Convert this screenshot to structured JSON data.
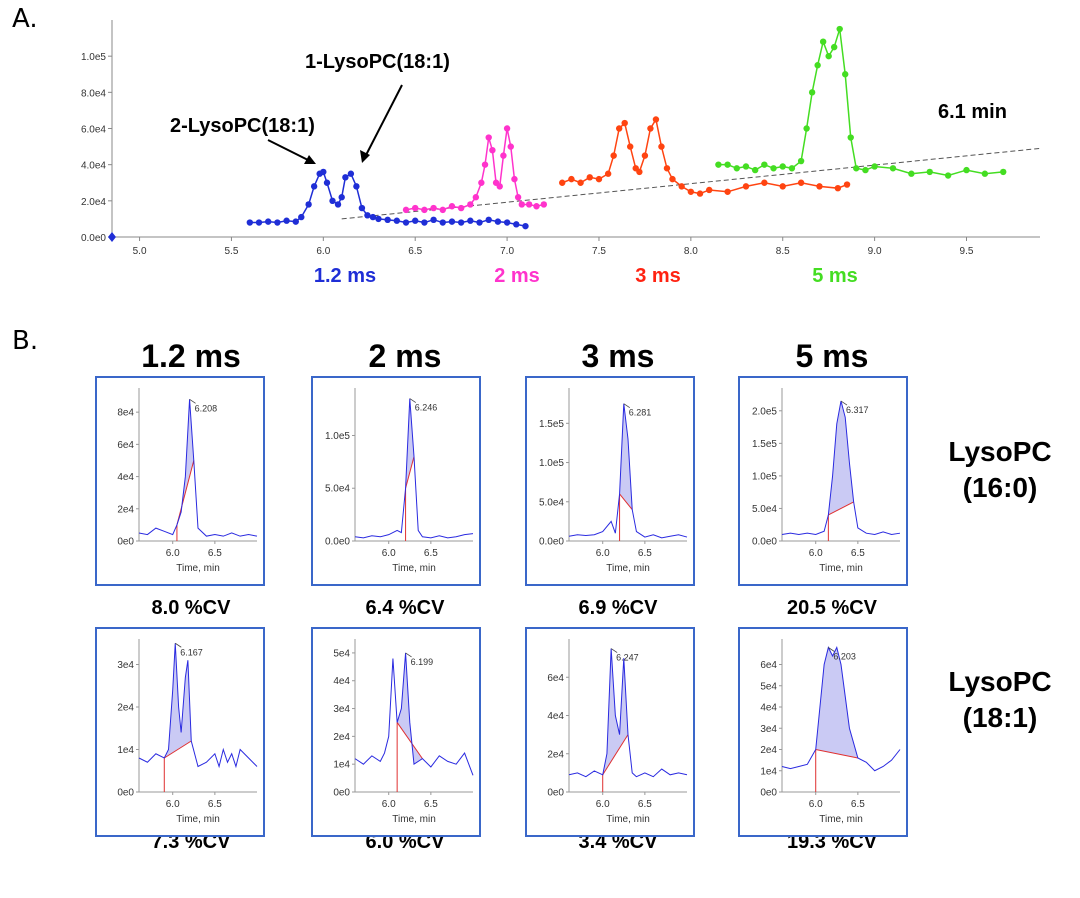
{
  "panelA": {
    "letter": "A.",
    "annotations": {
      "peak1": "1-LysoPC(18:1)",
      "peak2": "2-LysoPC(18:1)",
      "time": "6.1 min"
    },
    "series_labels": [
      "1.2 ms",
      "2 ms",
      "3 ms",
      "5 ms"
    ],
    "colors": {
      "s1": "#1f2ed6",
      "s2": "#ff33cc",
      "s3": "#ff4411",
      "s4": "#44dd22"
    }
  },
  "panelB": {
    "letter": "B.",
    "column_titles": [
      "1.2 ms",
      "2 ms",
      "3 ms",
      "5 ms"
    ],
    "row_labels": [
      {
        "line1": "LysoPC",
        "line2": "(16:0)"
      },
      {
        "line1": "LysoPC",
        "line2": "(18:1)"
      }
    ],
    "cv_row1": [
      "8.0 %CV",
      "6.4 %CV",
      "6.9 %CV",
      "20.5 %CV"
    ],
    "cv_row2": [
      "7.3 %CV",
      "6.0 %CV",
      "3.4 %CV",
      "19.3 %CV"
    ],
    "x_axis_title": "Time, min"
  },
  "chart_data": [
    {
      "type": "scatter",
      "title": "",
      "xlabel": "",
      "ylabel": "",
      "xlim": [
        4.85,
        9.9
      ],
      "ylim": [
        0,
        120000
      ],
      "x_ticks": [
        "5.0",
        "5.5",
        "6.0",
        "6.5",
        "7.0",
        "7.5",
        "8.0",
        "8.5",
        "9.0",
        "9.5"
      ],
      "y_ticks": [
        "0.0e0",
        "2.0e4",
        "4.0e4",
        "6.0e4",
        "8.0e4",
        "1.0e5"
      ],
      "series": [
        {
          "name": "1.2 ms",
          "color": "#1f2ed6",
          "x": [
            5.6,
            5.65,
            5.7,
            5.75,
            5.8,
            5.85,
            5.88,
            5.92,
            5.95,
            5.98,
            6.0,
            6.02,
            6.05,
            6.08,
            6.1,
            6.12,
            6.15,
            6.18,
            6.21,
            6.24,
            6.27,
            6.3,
            6.35,
            6.4,
            6.45,
            6.5,
            6.55,
            6.6,
            6.65,
            6.7,
            6.75,
            6.8,
            6.85,
            6.9,
            6.95,
            7.0,
            7.05,
            7.1
          ],
          "y": [
            8000,
            8000,
            8500,
            8000,
            9000,
            8500,
            11000,
            18000,
            28000,
            35000,
            36000,
            30000,
            20000,
            18000,
            22000,
            33000,
            35000,
            28000,
            16000,
            12000,
            11000,
            10000,
            9500,
            9000,
            8000,
            9000,
            8000,
            9500,
            8000,
            8500,
            8000,
            9000,
            8000,
            9500,
            8500,
            8000,
            7000,
            6000
          ]
        },
        {
          "name": "2 ms",
          "color": "#ff33cc",
          "x": [
            6.45,
            6.5,
            6.55,
            6.6,
            6.65,
            6.7,
            6.75,
            6.8,
            6.83,
            6.86,
            6.88,
            6.9,
            6.92,
            6.94,
            6.96,
            6.98,
            7.0,
            7.02,
            7.04,
            7.06,
            7.08,
            7.12,
            7.16,
            7.2
          ],
          "y": [
            15000,
            16000,
            15000,
            16000,
            15000,
            17000,
            16000,
            18000,
            22000,
            30000,
            40000,
            55000,
            48000,
            30000,
            28000,
            45000,
            60000,
            50000,
            32000,
            22000,
            18000,
            18000,
            17000,
            18000
          ]
        },
        {
          "name": "3 ms",
          "color": "#ff4411",
          "x": [
            7.3,
            7.35,
            7.4,
            7.45,
            7.5,
            7.55,
            7.58,
            7.61,
            7.64,
            7.67,
            7.7,
            7.72,
            7.75,
            7.78,
            7.81,
            7.84,
            7.87,
            7.9,
            7.95,
            8.0,
            8.05,
            8.1,
            8.2,
            8.3,
            8.4,
            8.5,
            8.6,
            8.7,
            8.8,
            8.85
          ],
          "y": [
            30000,
            32000,
            30000,
            33000,
            32000,
            35000,
            45000,
            60000,
            63000,
            50000,
            38000,
            36000,
            45000,
            60000,
            65000,
            50000,
            38000,
            32000,
            28000,
            25000,
            24000,
            26000,
            25000,
            28000,
            30000,
            28000,
            30000,
            28000,
            27000,
            29000
          ]
        },
        {
          "name": "5 ms",
          "color": "#44dd22",
          "x": [
            8.15,
            8.2,
            8.25,
            8.3,
            8.35,
            8.4,
            8.45,
            8.5,
            8.55,
            8.6,
            8.63,
            8.66,
            8.69,
            8.72,
            8.75,
            8.78,
            8.81,
            8.84,
            8.87,
            8.9,
            8.95,
            9.0,
            9.1,
            9.2,
            9.3,
            9.4,
            9.5,
            9.6,
            9.7
          ],
          "y": [
            40000,
            40000,
            38000,
            39000,
            37000,
            40000,
            38000,
            39000,
            38000,
            42000,
            60000,
            80000,
            95000,
            108000,
            100000,
            105000,
            115000,
            90000,
            55000,
            38000,
            37000,
            39000,
            38000,
            35000,
            36000,
            34000,
            37000,
            35000,
            36000
          ]
        }
      ],
      "trend_line": {
        "x": [
          6.1,
          9.9
        ],
        "y": [
          10000,
          49000
        ],
        "style": "dashed"
      }
    },
    {
      "type": "line",
      "label": "LysoPC(16:0) 1.2 ms",
      "peak_label": "6.208",
      "xlim": [
        5.6,
        7.0
      ],
      "ylim": [
        0,
        95000
      ],
      "x_ticks": [
        "6.0",
        "6.5"
      ],
      "y_ticks": [
        "0e0",
        "2e4",
        "4e4",
        "6e4",
        "8e4"
      ],
      "x": [
        5.6,
        5.7,
        5.8,
        5.9,
        6.0,
        6.05,
        6.1,
        6.15,
        6.2,
        6.25,
        6.3,
        6.4,
        6.5,
        6.6,
        6.7,
        6.8,
        6.9,
        7.0
      ],
      "y": [
        5000,
        4000,
        8000,
        6000,
        4000,
        10000,
        18000,
        40000,
        88000,
        50000,
        8000,
        3000,
        4000,
        3000,
        5000,
        3000,
        4000,
        3000
      ]
    },
    {
      "type": "line",
      "label": "LysoPC(16:0) 2 ms",
      "peak_label": "6.246",
      "xlim": [
        5.6,
        7.0
      ],
      "ylim": [
        0,
        145000
      ],
      "x_ticks": [
        "6.0",
        "6.5"
      ],
      "y_ticks": [
        "0.0e0",
        "5.0e4",
        "1.0e5"
      ],
      "x": [
        5.6,
        5.7,
        5.8,
        5.9,
        6.0,
        6.1,
        6.15,
        6.2,
        6.25,
        6.3,
        6.35,
        6.4,
        6.5,
        6.6,
        6.7,
        6.8,
        6.9,
        7.0
      ],
      "y": [
        4000,
        3000,
        5000,
        4000,
        6000,
        10000,
        8000,
        50000,
        135000,
        80000,
        10000,
        4000,
        3000,
        5000,
        3000,
        4000,
        6000,
        7000
      ]
    },
    {
      "type": "line",
      "label": "LysoPC(16:0) 3 ms",
      "peak_label": "6.281",
      "xlim": [
        5.6,
        7.0
      ],
      "ylim": [
        0,
        195000
      ],
      "x_ticks": [
        "6.0",
        "6.5"
      ],
      "y_ticks": [
        "0.0e0",
        "5.0e4",
        "1.0e5",
        "1.5e5"
      ],
      "x": [
        5.6,
        5.7,
        5.8,
        5.9,
        6.0,
        6.1,
        6.15,
        6.2,
        6.25,
        6.3,
        6.35,
        6.4,
        6.5,
        6.6,
        6.7,
        6.8,
        6.9,
        7.0
      ],
      "y": [
        6000,
        8000,
        7000,
        8000,
        12000,
        25000,
        10000,
        60000,
        175000,
        130000,
        40000,
        12000,
        5000,
        8000,
        4000,
        6000,
        8000,
        5000
      ]
    },
    {
      "type": "line",
      "label": "LysoPC(16:0) 5 ms",
      "peak_label": "6.317",
      "xlim": [
        5.6,
        7.0
      ],
      "ylim": [
        0,
        235000
      ],
      "x_ticks": [
        "6.0",
        "6.5"
      ],
      "y_ticks": [
        "0.0e0",
        "5.0e4",
        "1.0e5",
        "1.5e5",
        "2.0e5"
      ],
      "x": [
        5.6,
        5.7,
        5.8,
        5.9,
        6.0,
        6.1,
        6.15,
        6.2,
        6.25,
        6.3,
        6.35,
        6.4,
        6.45,
        6.5,
        6.6,
        6.7,
        6.8,
        6.9,
        7.0
      ],
      "y": [
        10000,
        12000,
        10000,
        12000,
        10000,
        15000,
        40000,
        100000,
        180000,
        215000,
        190000,
        120000,
        60000,
        20000,
        12000,
        10000,
        14000,
        10000,
        12000
      ]
    },
    {
      "type": "line",
      "label": "LysoPC(18:1) 1.2 ms",
      "peak_label": "6.167",
      "xlim": [
        5.6,
        7.0
      ],
      "ylim": [
        0,
        36000
      ],
      "x_ticks": [
        "6.0",
        "6.5"
      ],
      "y_ticks": [
        "0e0",
        "1e4",
        "2e4",
        "3e4"
      ],
      "x": [
        5.6,
        5.7,
        5.8,
        5.9,
        5.95,
        6.0,
        6.03,
        6.07,
        6.1,
        6.15,
        6.18,
        6.22,
        6.3,
        6.4,
        6.5,
        6.55,
        6.6,
        6.65,
        6.7,
        6.75,
        6.8,
        6.9,
        7.0
      ],
      "y": [
        8000,
        7000,
        9000,
        8000,
        10000,
        24000,
        35000,
        20000,
        14000,
        27000,
        31000,
        12000,
        6000,
        7000,
        9000,
        6000,
        10000,
        7000,
        9000,
        6000,
        10000,
        8000,
        6000
      ]
    },
    {
      "type": "line",
      "label": "LysoPC(18:1) 2 ms",
      "peak_label": "6.199",
      "xlim": [
        5.6,
        7.0
      ],
      "ylim": [
        0,
        55000
      ],
      "x_ticks": [
        "6.0",
        "6.5"
      ],
      "y_ticks": [
        "0e0",
        "1e4",
        "2e4",
        "3e4",
        "4e4",
        "5e4"
      ],
      "x": [
        5.6,
        5.7,
        5.8,
        5.9,
        5.95,
        6.0,
        6.05,
        6.1,
        6.15,
        6.2,
        6.25,
        6.3,
        6.4,
        6.5,
        6.6,
        6.7,
        6.8,
        6.9,
        7.0
      ],
      "y": [
        12000,
        10000,
        13000,
        11000,
        14000,
        20000,
        48000,
        25000,
        30000,
        50000,
        25000,
        10000,
        12000,
        9000,
        13000,
        11000,
        10000,
        14000,
        6000
      ]
    },
    {
      "type": "line",
      "label": "LysoPC(18:1) 3 ms",
      "peak_label": "6.247",
      "xlim": [
        5.6,
        7.0
      ],
      "ylim": [
        0,
        80000
      ],
      "x_ticks": [
        "6.0",
        "6.5"
      ],
      "y_ticks": [
        "0e0",
        "2e4",
        "4e4",
        "6e4"
      ],
      "x": [
        5.6,
        5.7,
        5.8,
        5.9,
        6.0,
        6.05,
        6.1,
        6.15,
        6.2,
        6.25,
        6.3,
        6.35,
        6.4,
        6.5,
        6.6,
        6.7,
        6.8,
        6.9,
        7.0
      ],
      "y": [
        9000,
        10000,
        8000,
        11000,
        9000,
        20000,
        75000,
        40000,
        30000,
        70000,
        30000,
        10000,
        8000,
        10000,
        8000,
        12000,
        9000,
        10000,
        9000
      ]
    },
    {
      "type": "line",
      "label": "LysoPC(18:1) 5 ms",
      "peak_label": "6.203",
      "xlim": [
        5.6,
        7.0
      ],
      "ylim": [
        0,
        72000
      ],
      "x_ticks": [
        "6.0",
        "6.5"
      ],
      "y_ticks": [
        "0e0",
        "1e4",
        "2e4",
        "3e4",
        "4e4",
        "5e4",
        "6e4"
      ],
      "x": [
        5.6,
        5.7,
        5.8,
        5.9,
        6.0,
        6.05,
        6.1,
        6.15,
        6.2,
        6.25,
        6.3,
        6.35,
        6.4,
        6.5,
        6.6,
        6.7,
        6.8,
        6.9,
        7.0
      ],
      "y": [
        12000,
        11000,
        12000,
        13000,
        20000,
        40000,
        60000,
        68000,
        64000,
        68000,
        60000,
        45000,
        30000,
        16000,
        14000,
        10000,
        12000,
        15000,
        20000
      ]
    }
  ]
}
